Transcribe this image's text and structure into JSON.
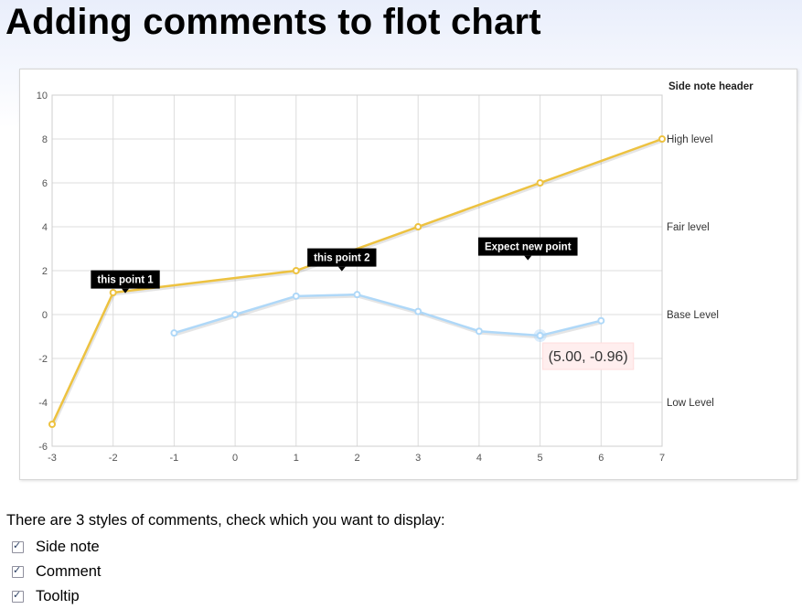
{
  "page": {
    "title": "Adding comments to flot chart",
    "prompt": "There are 3 styles of comments, check which you want to display:",
    "options": [
      {
        "label": "Side note",
        "checked": true
      },
      {
        "label": "Comment",
        "checked": true
      },
      {
        "label": "Tooltip",
        "checked": true
      }
    ]
  },
  "chart_data": {
    "type": "line",
    "xlim": [
      -3,
      7
    ],
    "ylim": [
      -6,
      10
    ],
    "xticks": [
      -3,
      -2,
      -1,
      0,
      1,
      2,
      3,
      4,
      5,
      6,
      7
    ],
    "yticks": [
      -6,
      -4,
      -2,
      0,
      2,
      4,
      6,
      8,
      10
    ],
    "grid": true,
    "series": [
      {
        "color": "#edc240",
        "x": [
          -3,
          -2,
          1,
          3,
          5,
          7
        ],
        "y": [
          -5,
          1,
          2,
          4,
          6,
          8
        ]
      },
      {
        "color": "#afd8f8",
        "x": [
          -1,
          0,
          1,
          2,
          3,
          4,
          5,
          6
        ],
        "y": [
          -0.84,
          0,
          0.84,
          0.91,
          0.14,
          -0.76,
          -0.96,
          -0.28
        ]
      }
    ],
    "side_note_header": "Side note header",
    "side_notes": [
      {
        "y": 8,
        "label": "High level"
      },
      {
        "y": 4,
        "label": "Fair level"
      },
      {
        "y": 0,
        "label": "Base Level"
      },
      {
        "y": -4,
        "label": "Low Level"
      }
    ],
    "comments": [
      {
        "x": -1.8,
        "y": 1.6,
        "label": "this point 1"
      },
      {
        "x": 1.75,
        "y": 2.6,
        "label": "this point 2"
      },
      {
        "x": 4.8,
        "y": 3.1,
        "label": "Expect new point"
      }
    ],
    "tooltip": {
      "x": 5,
      "y": -0.96,
      "text": "(5.00, -0.96)"
    }
  }
}
